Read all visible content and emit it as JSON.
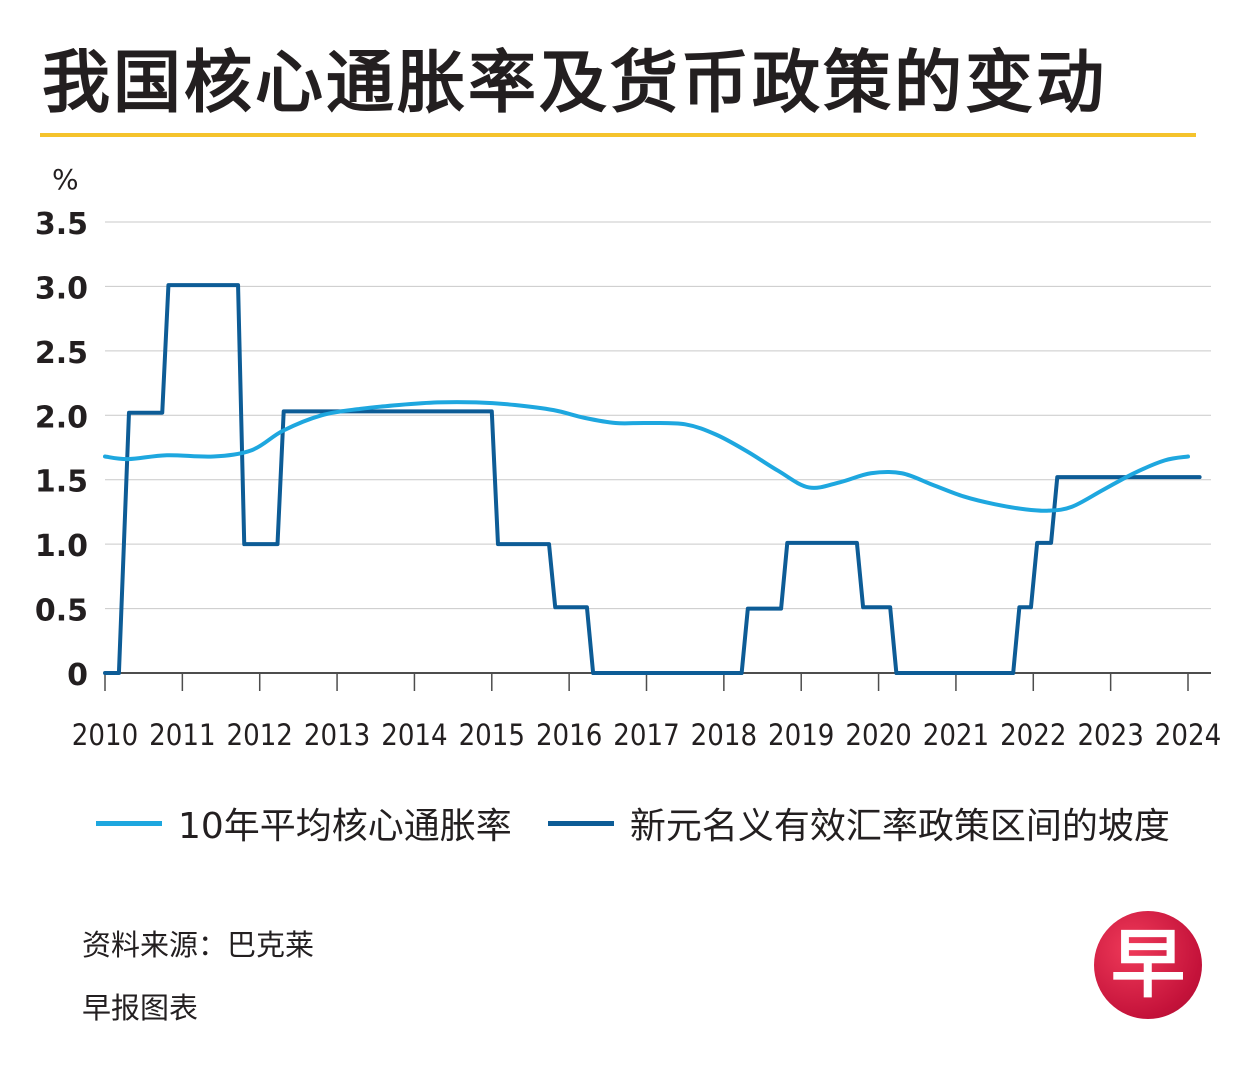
{
  "title": "我国核心通胀率及货币政策的变动",
  "source": "资料来源：巴克莱",
  "credit": "早报图表",
  "logo_text": "早",
  "colors": {
    "accent_rule": "#f5c32c",
    "series_light": "#1ea7df",
    "series_dark": "#0d5c96",
    "grid": "#c9c9c9",
    "axis": "#4d4d4d",
    "logo": "#d2143c"
  },
  "chart_data": {
    "type": "line",
    "title": "我国核心通胀率及货币政策的变动",
    "ylabel": "%",
    "xlabel": "",
    "xlim": [
      2010,
      2024
    ],
    "ylim": [
      0,
      3.5
    ],
    "x_ticks": [
      "2010",
      "2011",
      "2012",
      "2013",
      "2014",
      "2015",
      "2016",
      "2017",
      "2018",
      "2019",
      "2020",
      "2021",
      "2022",
      "2023",
      "2024"
    ],
    "y_ticks": [
      "3.5",
      "3.0",
      "2.5",
      "2.0",
      "1.5",
      "1.0",
      "0.5",
      "0"
    ],
    "y_tick_values": [
      3.5,
      3.0,
      2.5,
      2.0,
      1.5,
      1.0,
      0.5,
      0
    ],
    "grid": true,
    "legend_position": "bottom",
    "series": [
      {
        "name": "10年平均核心通胀率",
        "style": "smooth",
        "color": "#1ea7df",
        "x": [
          2010.0,
          2010.3,
          2010.8,
          2011.4,
          2011.9,
          2012.3,
          2012.8,
          2013.3,
          2013.8,
          2014.3,
          2014.8,
          2015.3,
          2015.8,
          2016.2,
          2016.6,
          2017.0,
          2017.5,
          2017.9,
          2018.3,
          2018.7,
          2019.1,
          2019.5,
          2019.9,
          2020.3,
          2020.7,
          2021.1,
          2021.5,
          2021.9,
          2022.2,
          2022.5,
          2022.9,
          2023.3,
          2023.7,
          2024.0
        ],
        "y": [
          1.68,
          1.66,
          1.69,
          1.68,
          1.73,
          1.88,
          2.0,
          2.05,
          2.08,
          2.1,
          2.1,
          2.08,
          2.04,
          1.98,
          1.94,
          1.94,
          1.93,
          1.85,
          1.72,
          1.57,
          1.44,
          1.48,
          1.55,
          1.55,
          1.46,
          1.37,
          1.31,
          1.27,
          1.26,
          1.29,
          1.42,
          1.55,
          1.65,
          1.68
        ]
      },
      {
        "name": "新元名义有效汇率政策区间的坡度",
        "style": "step",
        "color": "#0d5c96",
        "x": [
          2010.0,
          2010.18,
          2010.31,
          2010.74,
          2010.82,
          2011.72,
          2011.8,
          2012.23,
          2012.31,
          2015.0,
          2015.08,
          2015.74,
          2015.82,
          2016.23,
          2016.31,
          2018.23,
          2018.31,
          2018.74,
          2018.82,
          2019.72,
          2019.8,
          2020.15,
          2020.23,
          2021.74,
          2021.82,
          2021.97,
          2022.05,
          2022.23,
          2022.31,
          2024.15
        ],
        "y": [
          0,
          0,
          2.02,
          2.02,
          3.01,
          3.01,
          1.0,
          1.0,
          2.03,
          2.03,
          1.0,
          1.0,
          0.51,
          0.51,
          0,
          0,
          0.5,
          0.5,
          1.01,
          1.01,
          0.51,
          0.51,
          0,
          0,
          0.51,
          0.51,
          1.01,
          1.01,
          1.52,
          1.52
        ]
      }
    ]
  }
}
